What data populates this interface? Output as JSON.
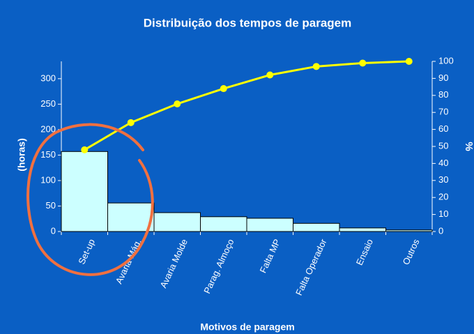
{
  "chart_data": {
    "type": "pareto",
    "title": "Distribuição dos tempos de paragem",
    "x_label": "Motivos de paragem",
    "y_label": "(horas)",
    "y2_label": "%",
    "categories": [
      "Set-up",
      "Avaria Máq.",
      "Avaria Molde",
      "Parag. Almoço",
      "Falta MP",
      "Falta Operador",
      "Ensaio",
      "Outros"
    ],
    "series": [
      {
        "type": "bar",
        "color": "#ccffff",
        "values": [
          157,
          56,
          37,
          29,
          26,
          16,
          7,
          3
        ]
      },
      {
        "type": "line",
        "color": "#ffff00",
        "axis": "y2",
        "values": [
          48,
          64,
          75,
          84,
          92,
          97,
          99,
          100
        ]
      }
    ],
    "ylim": [
      0,
      334
    ],
    "yticks": [
      0,
      50,
      100,
      150,
      200,
      250,
      300
    ],
    "y2lim": [
      0,
      100
    ],
    "y2ticks": [
      0,
      10,
      20,
      30,
      40,
      50,
      60,
      70,
      80,
      90,
      100
    ]
  }
}
